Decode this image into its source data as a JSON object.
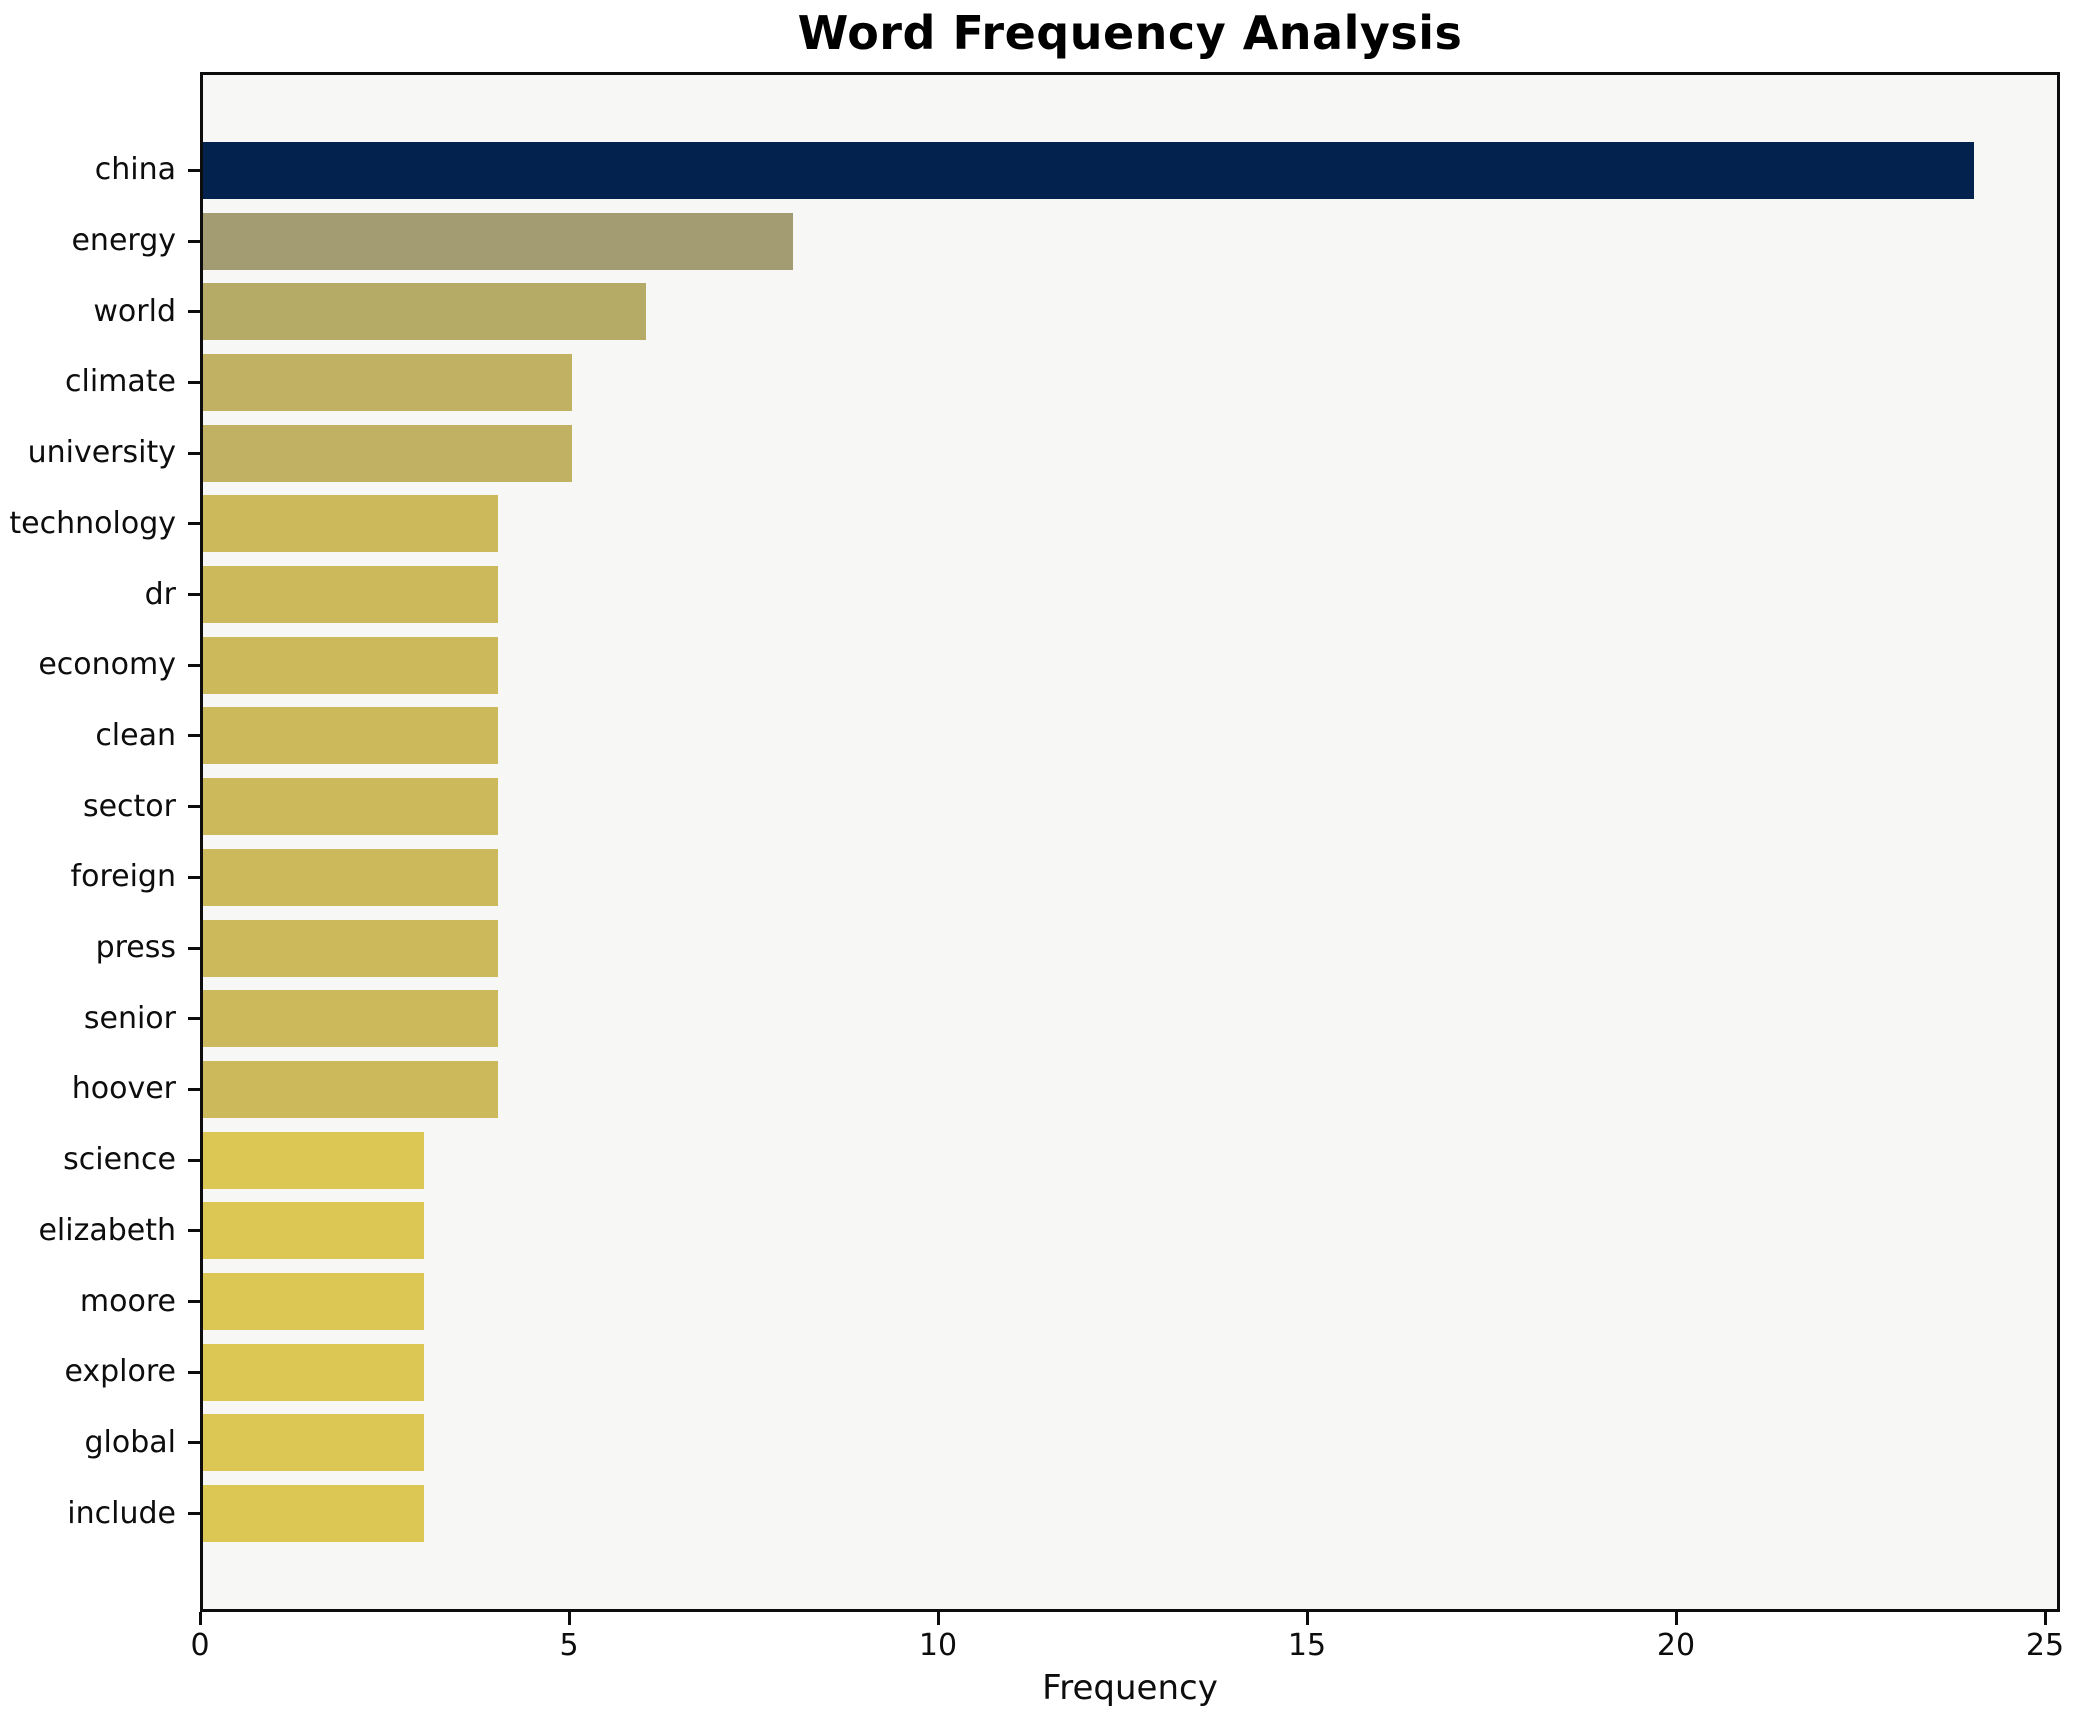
{
  "chart_data": {
    "type": "bar",
    "orientation": "horizontal",
    "title": "Word Frequency Analysis",
    "xlabel": "Frequency",
    "ylabel": "",
    "categories": [
      "china",
      "energy",
      "world",
      "climate",
      "university",
      "technology",
      "dr",
      "economy",
      "clean",
      "sector",
      "foreign",
      "press",
      "senior",
      "hoover",
      "science",
      "elizabeth",
      "moore",
      "explore",
      "global",
      "include"
    ],
    "values": [
      24,
      8,
      6,
      5,
      5,
      4,
      4,
      4,
      4,
      4,
      4,
      4,
      4,
      4,
      3,
      3,
      3,
      3,
      3,
      3
    ],
    "bar_colors": [
      "#03224d",
      "#a39b72",
      "#b5aa66",
      "#c1b163",
      "#c1b163",
      "#ccb95c",
      "#ccb95c",
      "#ccb95c",
      "#ccb95c",
      "#ccb95c",
      "#ccb95c",
      "#ccb95c",
      "#ccb95c",
      "#ccb95c",
      "#dcc754",
      "#dcc754",
      "#dcc754",
      "#dcc754",
      "#dcc754",
      "#dcc754"
    ],
    "xticks": [
      0,
      5,
      10,
      15,
      20,
      25
    ],
    "xlim": [
      0,
      25.2
    ],
    "grid": false,
    "legend": null,
    "plot_background": "#f7f7f6",
    "figure_background": "#ffffff",
    "axis_color": "#0d0d0d"
  }
}
